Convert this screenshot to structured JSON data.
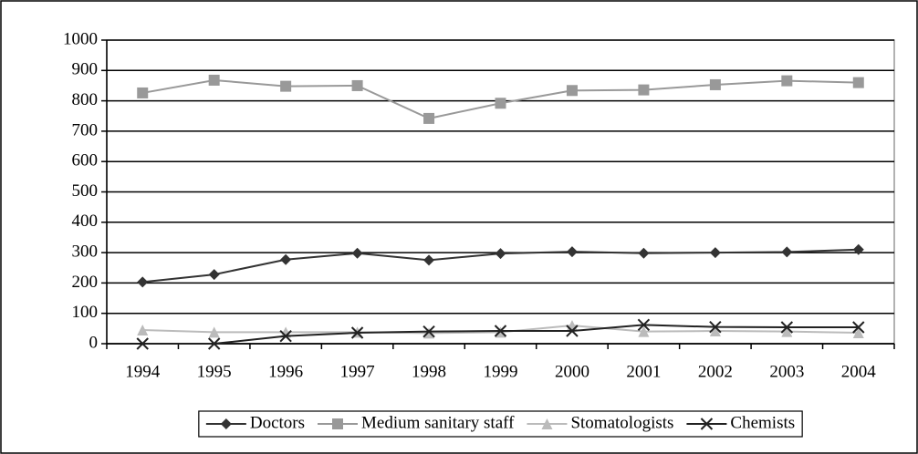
{
  "chart_data": {
    "type": "line",
    "categories": [
      "1994",
      "1995",
      "1996",
      "1997",
      "1998",
      "1999",
      "2000",
      "2001",
      "2002",
      "2003",
      "2004"
    ],
    "series": [
      {
        "name": "Doctors",
        "color": "#333333",
        "marker": "diamond",
        "values": [
          203,
          228,
          277,
          298,
          275,
          297,
          303,
          298,
          300,
          302,
          310
        ]
      },
      {
        "name": "Medium sanitary staff",
        "color": "#999999",
        "marker": "square",
        "values": [
          826,
          868,
          848,
          850,
          742,
          792,
          834,
          836,
          853,
          866,
          860
        ]
      },
      {
        "name": "Stomatologists",
        "color": "#bbbbbb",
        "marker": "triangle",
        "values": [
          45,
          38,
          38,
          38,
          35,
          38,
          60,
          40,
          42,
          40,
          36
        ]
      },
      {
        "name": "Chemists",
        "color": "#222222",
        "marker": "x",
        "values": [
          0,
          0,
          25,
          36,
          40,
          42,
          42,
          62,
          55,
          54,
          54
        ]
      }
    ],
    "ylim": [
      0,
      1000
    ],
    "yticks": [
      0,
      100,
      200,
      300,
      400,
      500,
      600,
      700,
      800,
      900,
      1000
    ],
    "grid": true,
    "legend": "bottom"
  }
}
